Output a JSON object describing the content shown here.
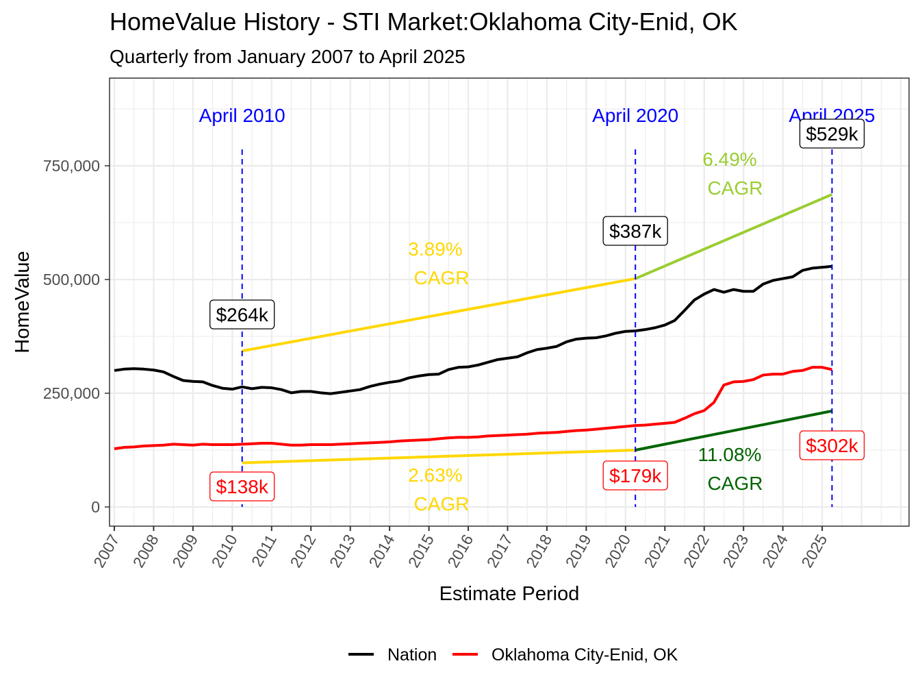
{
  "chart_data": {
    "type": "line",
    "title": "HomeValue History - STI Market:Oklahoma City-Enid, OK",
    "subtitle": "Quarterly from January 2007 to April 2025",
    "xlabel": "Estimate Period",
    "ylabel": "HomeValue",
    "xlim": [
      2006.88,
      2027.2
    ],
    "ylim": [
      -42000,
      943000
    ],
    "grid": true,
    "legend_position": "bottom",
    "x_ticks": [
      "2007",
      "2008",
      "2009",
      "2010",
      "2011",
      "2012",
      "2013",
      "2014",
      "2015",
      "2016",
      "2017",
      "2018",
      "2019",
      "2020",
      "2021",
      "2022",
      "2023",
      "2024",
      "2025"
    ],
    "y_ticks": [
      {
        "value": 0,
        "label": "0"
      },
      {
        "value": 250000,
        "label": "250,000"
      },
      {
        "value": 500000,
        "label": "500,000"
      },
      {
        "value": 750000,
        "label": "750,000"
      }
    ],
    "x": [
      2007,
      2007.25,
      2007.5,
      2007.75,
      2008,
      2008.25,
      2008.5,
      2008.75,
      2009,
      2009.25,
      2009.5,
      2009.75,
      2010,
      2010.25,
      2010.5,
      2010.75,
      2011,
      2011.25,
      2011.5,
      2011.75,
      2012,
      2012.25,
      2012.5,
      2012.75,
      2013,
      2013.25,
      2013.5,
      2013.75,
      2014,
      2014.25,
      2014.5,
      2014.75,
      2015,
      2015.25,
      2015.5,
      2015.75,
      2016,
      2016.25,
      2016.5,
      2016.75,
      2017,
      2017.25,
      2017.5,
      2017.75,
      2018,
      2018.25,
      2018.5,
      2018.75,
      2019,
      2019.25,
      2019.5,
      2019.75,
      2020,
      2020.25,
      2020.5,
      2020.75,
      2021,
      2021.25,
      2021.5,
      2021.75,
      2022,
      2022.25,
      2022.5,
      2022.75,
      2023,
      2023.25,
      2023.5,
      2023.75,
      2024,
      2024.25,
      2024.5,
      2024.75,
      2025,
      2025.25
    ],
    "series": [
      {
        "name": "Nation",
        "color": "#000000",
        "values": [
          300000,
          303000,
          304000,
          303000,
          301000,
          297000,
          287000,
          278000,
          276000,
          275000,
          267000,
          261000,
          259000,
          264000,
          260000,
          263000,
          262000,
          258000,
          251000,
          254000,
          254000,
          251000,
          249000,
          252000,
          255000,
          258000,
          265000,
          270000,
          274000,
          277000,
          284000,
          288000,
          291000,
          292000,
          302000,
          307000,
          308000,
          312000,
          318000,
          324000,
          327000,
          330000,
          339000,
          346000,
          349000,
          353000,
          363000,
          369000,
          371000,
          372000,
          376000,
          382000,
          386000,
          387000,
          390000,
          394000,
          400000,
          410000,
          432000,
          455000,
          468000,
          478000,
          472000,
          478000,
          474000,
          474000,
          490000,
          498000,
          502000,
          506000,
          520000,
          525000,
          527000,
          529000
        ]
      },
      {
        "name": "Oklahoma City-Enid, OK",
        "color": "#ff0000",
        "values": [
          128000,
          131000,
          132000,
          134000,
          135000,
          136000,
          138000,
          137000,
          136000,
          138000,
          137000,
          137000,
          137000,
          138000,
          139000,
          140000,
          140000,
          138000,
          136000,
          136000,
          137000,
          137000,
          137000,
          138000,
          139000,
          140000,
          141000,
          142000,
          143000,
          145000,
          146000,
          147000,
          148000,
          150000,
          152000,
          153000,
          153000,
          154000,
          156000,
          157000,
          158000,
          159000,
          160000,
          162000,
          163000,
          164000,
          166000,
          168000,
          169000,
          171000,
          173000,
          175000,
          177000,
          179000,
          180000,
          182000,
          184000,
          186000,
          195000,
          205000,
          212000,
          230000,
          268000,
          275000,
          276000,
          280000,
          290000,
          292000,
          292000,
          298000,
          300000,
          307000,
          307000,
          302000
        ]
      }
    ],
    "markers": [
      {
        "x": 2010.25,
        "label": "April 2010"
      },
      {
        "x": 2020.25,
        "label": "April 2020"
      },
      {
        "x": 2025.25,
        "label": "April 2025"
      }
    ],
    "value_labels": [
      {
        "x": 2010.25,
        "series": "Nation",
        "label": "$264k",
        "color": "#000000"
      },
      {
        "x": 2020.25,
        "series": "Nation",
        "label": "$387k",
        "color": "#000000"
      },
      {
        "x": 2025.25,
        "series": "Nation",
        "label": "$529k",
        "color": "#000000"
      },
      {
        "x": 2010.25,
        "series": "Oklahoma City-Enid, OK",
        "label": "$138k",
        "color": "#ff0000"
      },
      {
        "x": 2020.25,
        "series": "Oklahoma City-Enid, OK",
        "label": "$179k",
        "color": "#ff0000"
      },
      {
        "x": 2025.25,
        "series": "Oklahoma City-Enid, OK",
        "label": "$302k",
        "color": "#ff0000"
      }
    ],
    "cagr_segments": [
      {
        "x": [
          2010.25,
          2020.25
        ],
        "y": [
          343000,
          502000
        ],
        "color": "#ffd700",
        "rate": "3.89%",
        "label": "CAGR"
      },
      {
        "x": [
          2020.25,
          2025.25
        ],
        "y": [
          502000,
          687000
        ],
        "color": "#9acd32",
        "rate": "6.49%",
        "label": "CAGR"
      },
      {
        "x": [
          2010.25,
          2020.25
        ],
        "y": [
          97000,
          125000
        ],
        "color": "#ffd700",
        "rate": "2.63%",
        "label": "CAGR"
      },
      {
        "x": [
          2020.25,
          2025.25
        ],
        "y": [
          125000,
          211000
        ],
        "color": "#006400",
        "rate": "11.08%",
        "label": "CAGR"
      }
    ],
    "marker_color": "#0000ff"
  }
}
